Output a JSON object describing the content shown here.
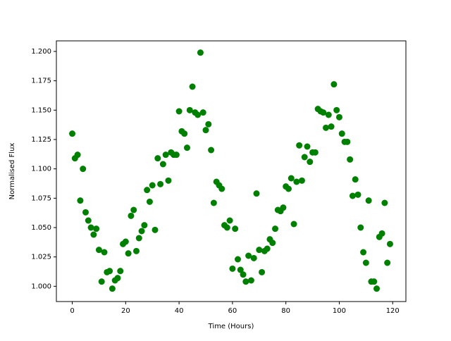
{
  "chart_data": {
    "type": "scatter",
    "color": "#008000",
    "xlabel": "Time (Hours)",
    "ylabel": "Normalised Flux",
    "x": [
      0,
      1,
      2,
      3,
      4,
      5,
      6,
      7,
      8,
      9,
      10,
      11,
      12,
      13,
      14,
      15,
      16,
      17,
      18,
      19,
      20,
      21,
      22,
      23,
      24,
      25,
      26,
      27,
      28,
      29,
      30,
      31,
      32,
      33,
      34,
      35,
      36,
      37,
      38,
      39,
      40,
      41,
      42,
      43,
      44,
      45,
      46,
      47,
      48,
      49,
      50,
      51,
      52,
      53,
      54,
      55,
      56,
      57,
      58,
      59,
      60,
      61,
      62,
      63,
      64,
      65,
      66,
      67,
      68,
      69,
      70,
      71,
      72,
      73,
      74,
      75,
      76,
      77,
      78,
      79,
      80,
      81,
      82,
      83,
      84,
      85,
      86,
      87,
      88,
      89,
      90,
      91,
      92,
      93,
      94,
      95,
      96,
      97,
      98,
      99,
      100,
      101,
      102,
      103,
      104,
      105,
      106,
      107,
      108,
      109,
      110,
      111,
      112,
      113,
      114,
      115,
      116,
      117,
      118,
      119
    ],
    "values": [
      1.13,
      1.109,
      1.112,
      1.073,
      1.1,
      1.063,
      1.056,
      1.05,
      1.044,
      1.049,
      1.031,
      1.004,
      1.029,
      1.012,
      1.013,
      0.998,
      1.005,
      1.007,
      1.013,
      1.036,
      1.038,
      1.028,
      1.06,
      1.065,
      1.03,
      1.041,
      1.047,
      1.052,
      1.082,
      1.072,
      1.086,
      1.048,
      1.109,
      1.087,
      1.104,
      1.112,
      1.09,
      1.114,
      1.112,
      1.112,
      1.149,
      1.132,
      1.13,
      1.118,
      1.15,
      1.17,
      1.148,
      1.146,
      1.199,
      1.148,
      1.133,
      1.138,
      1.116,
      1.071,
      1.089,
      1.086,
      1.083,
      1.052,
      1.05,
      1.056,
      1.015,
      1.049,
      1.023,
      1.014,
      1.01,
      1.004,
      1.026,
      1.005,
      1.024,
      1.079,
      1.031,
      1.012,
      1.03,
      1.032,
      1.04,
      1.037,
      1.049,
      1.065,
      1.064,
      1.067,
      1.085,
      1.083,
      1.092,
      1.053,
      1.089,
      1.12,
      1.09,
      1.11,
      1.119,
      1.106,
      1.114,
      1.114,
      1.151,
      1.149,
      1.148,
      1.135,
      1.146,
      1.136,
      1.172,
      1.15,
      1.144,
      1.13,
      1.123,
      1.123,
      1.108,
      1.077,
      1.091,
      1.078,
      1.05,
      1.029,
      1.02,
      1.073,
      1.004,
      1.004,
      0.998,
      1.042,
      1.045,
      1.071,
      1.02,
      1.036
    ],
    "xlim": [
      -5.95,
      124.95
    ],
    "ylim": [
      0.987,
      1.209
    ],
    "xticks": [
      0,
      20,
      40,
      60,
      80,
      100,
      120
    ],
    "yticks": [
      {
        "value": 1.0,
        "label": "1.000"
      },
      {
        "value": 1.025,
        "label": "1.025"
      },
      {
        "value": 1.05,
        "label": "1.050"
      },
      {
        "value": 1.075,
        "label": "1.075"
      },
      {
        "value": 1.1,
        "label": "1.100"
      },
      {
        "value": 1.125,
        "label": "1.125"
      },
      {
        "value": 1.15,
        "label": "1.150"
      },
      {
        "value": 1.175,
        "label": "1.175"
      },
      {
        "value": 1.2,
        "label": "1.200"
      }
    ]
  }
}
